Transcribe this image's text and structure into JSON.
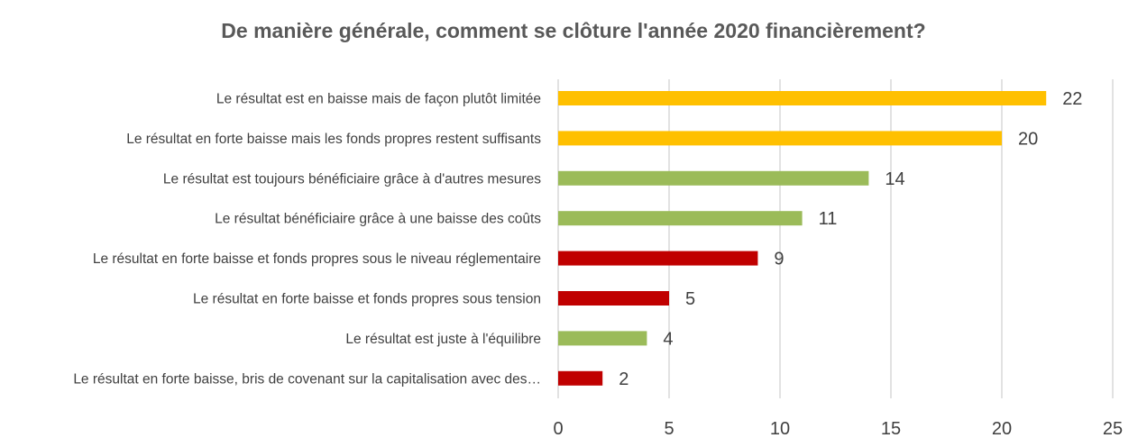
{
  "chart_data": {
    "type": "bar",
    "orientation": "horizontal",
    "title": "De manière générale, comment se clôture l'année 2020 financièrement?",
    "xlabel": "",
    "ylabel": "",
    "xlim": [
      0,
      25
    ],
    "x_ticks": [
      "0",
      "5",
      "10",
      "15",
      "20",
      "25"
    ],
    "grid": "vertical",
    "legend": "none",
    "categories": [
      "Le résultat est en baisse mais de façon plutôt limitée",
      "Le résultat en forte baisse mais les fonds propres restent suffisants",
      "Le résultat est toujours bénéficiaire grâce à d'autres mesures",
      "Le résultat bénéficiaire grâce à une baisse des coûts",
      "Le résultat  en forte baisse et fonds propres sous le niveau réglementaire",
      "Le résultat en forte baisse et fonds propres sous tension",
      "Le résultat est juste à l'équilibre",
      "Le résultat en forte baisse, bris de covenant sur la capitalisation avec des…"
    ],
    "values": [
      22,
      20,
      14,
      11,
      9,
      5,
      4,
      2
    ],
    "value_labels": [
      "22",
      "20",
      "14",
      "11",
      "9",
      "5",
      "4",
      "2"
    ],
    "bar_colors": [
      "#FFC000",
      "#FFC000",
      "#9BBB59",
      "#9BBB59",
      "#C00000",
      "#C00000",
      "#9BBB59",
      "#C00000"
    ]
  }
}
